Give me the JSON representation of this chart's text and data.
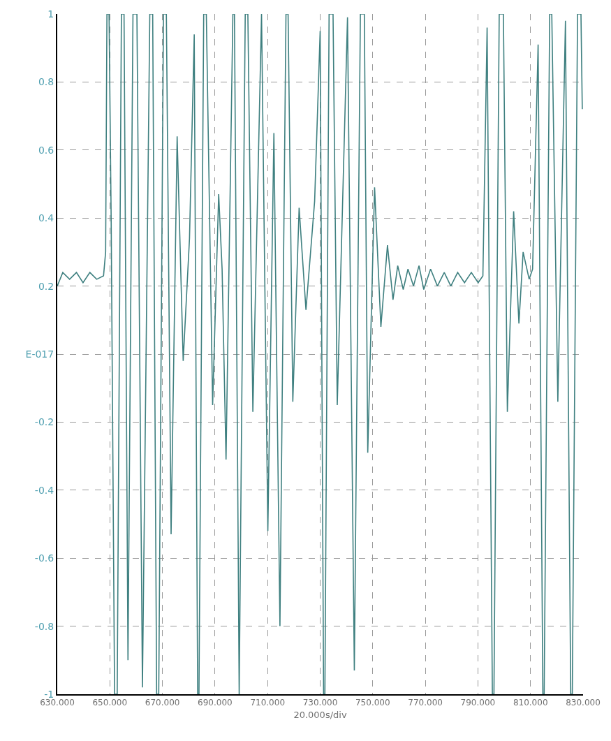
{
  "chart_data": {
    "type": "line",
    "xlabel": "20.000s/div",
    "x": [
      630,
      632.1,
      634.7,
      637.3,
      639.8,
      642.4,
      645.0,
      647.6,
      648.4,
      648.9,
      649.7,
      650.5,
      651.8,
      652.8,
      654.4,
      655.4,
      656.9,
      658.8,
      660.3,
      662.4,
      665.2,
      666.3,
      667.8,
      668.6,
      670.4,
      671.5,
      673.3,
      675.6,
      677.9,
      680.3,
      682.1,
      683.4,
      683.9,
      685.7,
      686.7,
      689.1,
      691.4,
      692.7,
      694.2,
      696.8,
      697.4,
      699.2,
      701.5,
      702.5,
      704.4,
      707.7,
      710.1,
      712.4,
      714.7,
      717.0,
      717.8,
      719.6,
      722.0,
      724.6,
      727.9,
      730.0,
      731.3,
      731.8,
      733.4,
      734.9,
      736.5,
      740.4,
      743.0,
      745.3,
      746.8,
      748.1,
      750.7,
      753.1,
      755.6,
      757.7,
      759.5,
      761.6,
      763.4,
      765.5,
      767.6,
      769.4,
      772.0,
      774.6,
      777.2,
      779.7,
      782.3,
      784.9,
      787.5,
      790.1,
      791.9,
      793.5,
      795.5,
      796.1,
      798.1,
      799.7,
      801.2,
      803.6,
      805.6,
      807.2,
      809.5,
      810.8,
      812.9,
      814.7,
      815.2,
      817.3,
      818.1,
      820.4,
      823.3,
      825.3,
      825.9,
      827.9,
      829.2,
      829.7
    ],
    "series": [
      {
        "color": "#3f8080",
        "values": [
          0.2,
          0.24,
          0.22,
          0.24,
          0.21,
          0.24,
          0.22,
          0.23,
          0.3,
          1,
          1,
          0.4,
          -1,
          -1,
          1,
          1,
          -0.9,
          1,
          1,
          -0.98,
          1,
          1,
          -1,
          -1,
          1,
          1,
          -0.53,
          0.64,
          -0.02,
          0.34,
          0.94,
          -1,
          -1,
          1,
          1,
          -0.15,
          0.47,
          0.25,
          -0.31,
          1,
          1,
          -1,
          1,
          1,
          -0.17,
          1,
          -0.52,
          0.65,
          -0.8,
          1,
          1,
          -0.14,
          0.43,
          0.13,
          0.45,
          0.95,
          -1,
          -1,
          1,
          1,
          -0.15,
          0.99,
          -0.93,
          1,
          1,
          -0.29,
          0.49,
          0.08,
          0.32,
          0.16,
          0.26,
          0.19,
          0.25,
          0.2,
          0.26,
          0.19,
          0.25,
          0.2,
          0.24,
          0.2,
          0.24,
          0.21,
          0.24,
          0.21,
          0.23,
          0.96,
          -1,
          -1,
          1,
          1,
          -0.17,
          0.42,
          0.09,
          0.3,
          0.22,
          0.25,
          0.91,
          -1,
          -1,
          1,
          1,
          -0.14,
          0.98,
          -1,
          -1,
          1,
          1,
          0.72
        ]
      }
    ],
    "xlim": [
      630,
      830
    ],
    "xticks": [
      {
        "value": 630,
        "label": "630.000"
      },
      {
        "value": 650,
        "label": "650.000"
      },
      {
        "value": 670,
        "label": "670.000"
      },
      {
        "value": 690,
        "label": "690.000"
      },
      {
        "value": 710,
        "label": "710.000"
      },
      {
        "value": 730,
        "label": "730.000"
      },
      {
        "value": 750,
        "label": "750.000"
      },
      {
        "value": 770,
        "label": "770.000"
      },
      {
        "value": 790,
        "label": "790.000"
      },
      {
        "value": 810,
        "label": "810.000"
      },
      {
        "value": 830,
        "label": "830.000"
      }
    ],
    "ylim": [
      -1,
      1
    ],
    "yticks": [
      -1,
      -0.8,
      -0.6,
      -0.4,
      -0.2,
      {
        "value": 0,
        "label": "E-017"
      },
      0.2,
      0.4,
      0.6,
      0.8,
      1
    ],
    "grid": true,
    "marker": "none",
    "line_style": "solid"
  }
}
